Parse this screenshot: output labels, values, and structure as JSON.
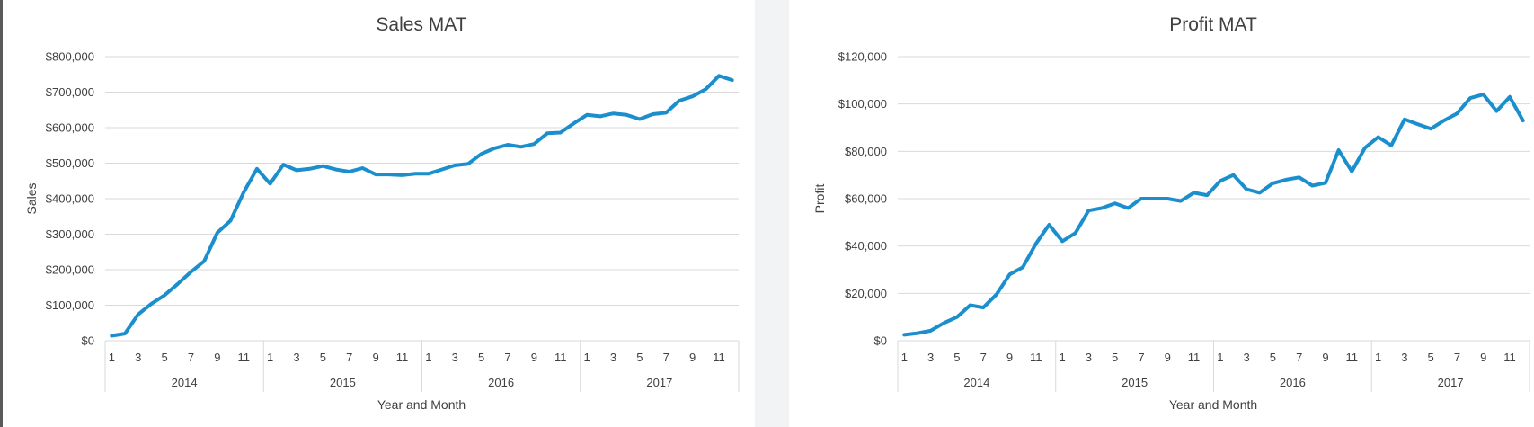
{
  "colors": {
    "series": "#1b8fcd",
    "grid": "#d9d9d9",
    "text": "#404040"
  },
  "chart_data": [
    {
      "type": "line",
      "title": "Sales MAT",
      "xlabel": "Year and Month",
      "ylabel": "Sales",
      "ylim": [
        0,
        800000
      ],
      "yticks": [
        0,
        100000,
        200000,
        300000,
        400000,
        500000,
        600000,
        700000,
        800000
      ],
      "ytick_labels": [
        "$0",
        "$100,000",
        "$200,000",
        "$300,000",
        "$400,000",
        "$500,000",
        "$600,000",
        "$700,000",
        "$800,000"
      ],
      "years": [
        "2014",
        "2015",
        "2016",
        "2017"
      ],
      "month_labels": [
        "1",
        "3",
        "5",
        "7",
        "9",
        "11"
      ],
      "grid": true,
      "series": [
        {
          "values": [
            14000,
            20000,
            74000,
            104000,
            128000,
            160000,
            194000,
            224000,
            304000,
            338000,
            418000,
            484000,
            442000,
            496000,
            480000,
            484000,
            492000,
            482000,
            476000,
            486000,
            468000,
            468000,
            466000,
            470000,
            470000,
            482000,
            494000,
            498000,
            526000,
            542000,
            552000,
            546000,
            554000,
            584000,
            586000,
            612000,
            636000,
            632000,
            640000,
            636000,
            624000,
            638000,
            642000,
            676000,
            688000,
            708000,
            746000,
            734000
          ]
        }
      ]
    },
    {
      "type": "line",
      "title": "Profit MAT",
      "xlabel": "Year and Month",
      "ylabel": "Profit",
      "ylim": [
        0,
        120000
      ],
      "yticks": [
        0,
        20000,
        40000,
        60000,
        80000,
        100000,
        120000
      ],
      "ytick_labels": [
        "$0",
        "$20,000",
        "$40,000",
        "$60,000",
        "$80,000",
        "$100,000",
        "$120,000"
      ],
      "years": [
        "2014",
        "2015",
        "2016",
        "2017"
      ],
      "month_labels": [
        "1",
        "3",
        "5",
        "7",
        "9",
        "11"
      ],
      "grid": true,
      "series": [
        {
          "values": [
            2500,
            3200,
            4200,
            7500,
            10000,
            15000,
            14000,
            19500,
            28000,
            31000,
            41000,
            49000,
            42000,
            45500,
            55000,
            56000,
            58000,
            56000,
            60000,
            60000,
            60000,
            59000,
            62500,
            61500,
            67500,
            70000,
            64000,
            62500,
            66500,
            68000,
            69000,
            65500,
            66700,
            80500,
            71500,
            81500,
            86000,
            82500,
            93500,
            91500,
            89500,
            93000,
            96000,
            102500,
            104000,
            97000,
            103000,
            93000
          ]
        }
      ]
    }
  ]
}
